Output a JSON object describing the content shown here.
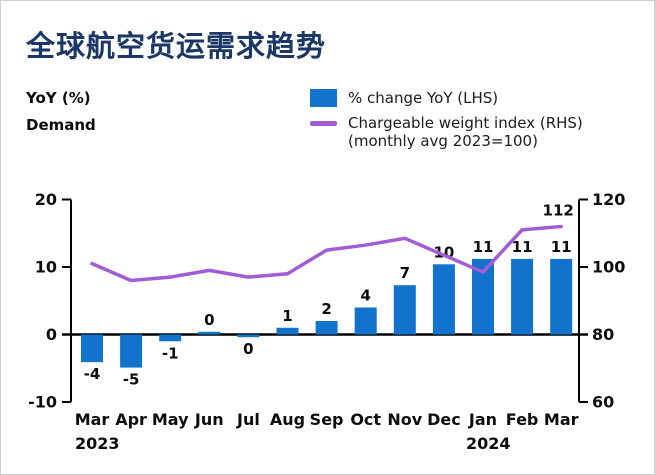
{
  "title": "全球航空货运需求趋势",
  "labels": {
    "yoy": "YoY (%)",
    "demand": "Demand"
  },
  "legend": {
    "bar_label": "%  change YoY (LHS)",
    "line_label": "Chargeable weight index (RHS)",
    "line_sublabel": "(monthly avg 2023=100)"
  },
  "colors": {
    "bar": "#1173cb",
    "line": "#a25dd4",
    "title": "#1b3765",
    "axis": "#000000"
  },
  "chart_data": {
    "type": "bar",
    "title": "全球航空货运需求趋势",
    "categories": [
      "Mar",
      "Apr",
      "May",
      "Jun",
      "Jul",
      "Aug",
      "Sep",
      "Oct",
      "Nov",
      "Dec",
      "Jan",
      "Feb",
      "Mar"
    ],
    "year_markers": [
      {
        "index": 0,
        "label": "2023"
      },
      {
        "index": 10,
        "label": "2024"
      }
    ],
    "left_axis": {
      "ticks": [
        20,
        10,
        0,
        -10
      ],
      "range": [
        -10,
        20
      ]
    },
    "right_axis": {
      "ticks": [
        120,
        100,
        80,
        60
      ],
      "range": [
        60,
        120
      ]
    },
    "grid": false,
    "legend_position": "top-right",
    "series": [
      {
        "name": "% change YoY (LHS)",
        "type": "bar",
        "axis": "left",
        "values": [
          -4,
          -5,
          -1,
          0,
          0,
          1,
          2,
          4,
          7,
          10,
          11,
          11,
          11
        ],
        "bar_labels": [
          "-4",
          "-5",
          "-1",
          "0",
          "0",
          "1",
          "2",
          "4",
          "7",
          "10",
          "11",
          "11",
          "11"
        ],
        "draw_values": [
          -4.1,
          -4.9,
          -1,
          0.4,
          -0.4,
          1,
          2,
          4,
          7.3,
          10.4,
          11.2,
          11.2,
          11.2
        ]
      },
      {
        "name": "Chargeable weight index (RHS)",
        "type": "line",
        "axis": "right",
        "values": [
          101,
          96,
          97,
          99,
          97,
          98,
          105,
          106.5,
          108.5,
          103.5,
          98.5,
          111,
          112
        ],
        "end_label": "112"
      }
    ]
  }
}
